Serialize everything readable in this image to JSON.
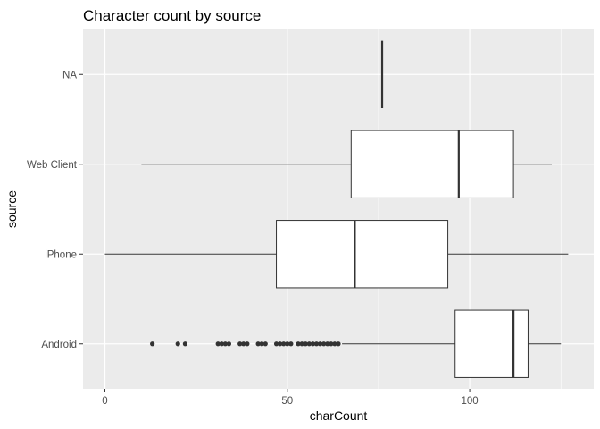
{
  "chart_data": {
    "type": "boxplot",
    "orientation": "horizontal",
    "title": "Character count by source",
    "xlabel": "charCount",
    "ylabel": "source",
    "xlim": [
      -6,
      134
    ],
    "x_ticks": [
      0,
      50,
      100
    ],
    "grid": true,
    "colors": {
      "panel": "#ebebeb",
      "grid": "#ffffff",
      "box_fill": "#ffffff",
      "line": "#333333",
      "tick_text": "#4d4d4d"
    },
    "categories": [
      "NA",
      "Web Client",
      "iPhone",
      "Android"
    ],
    "boxes": [
      {
        "name": "NA",
        "whisker_low": 76,
        "q1": 76,
        "median": 76,
        "q3": 76,
        "whisker_high": 76,
        "outliers": []
      },
      {
        "name": "Web Client",
        "whisker_low": 10,
        "q1": 67.5,
        "median": 97,
        "q3": 112,
        "whisker_high": 122.5,
        "outliers": []
      },
      {
        "name": "iPhone",
        "whisker_low": 0,
        "q1": 47,
        "median": 68.5,
        "q3": 94,
        "whisker_high": 127,
        "outliers": []
      },
      {
        "name": "Android",
        "whisker_low": 65,
        "q1": 96,
        "median": 112,
        "q3": 116,
        "whisker_high": 125,
        "outliers": [
          13,
          20,
          22,
          31,
          32,
          33,
          34,
          37,
          38,
          39,
          42,
          43,
          44,
          47,
          48,
          49,
          50,
          51,
          53,
          54,
          55,
          56,
          57,
          58,
          59,
          60,
          61,
          62,
          63,
          64
        ]
      }
    ]
  }
}
